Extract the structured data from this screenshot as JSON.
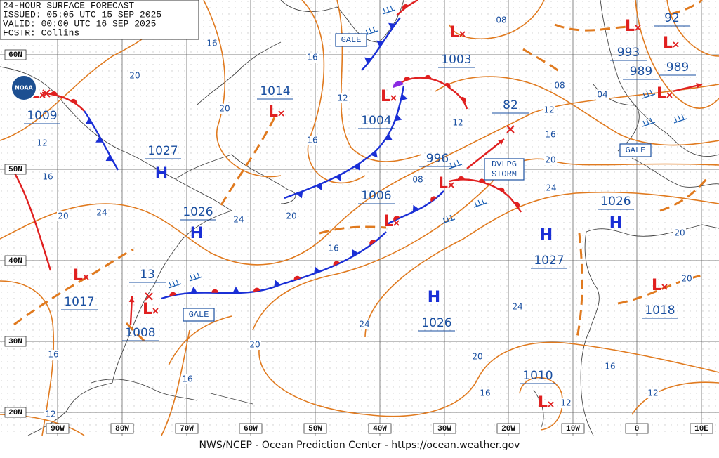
{
  "header": [
    "24-HOUR SURFACE FORECAST",
    "ISSUED: 05:05 UTC 15 SEP 2025",
    "VALID: 00:00 UTC 16 SEP 2025",
    "FCSTR: Collins"
  ],
  "logo": "NOAA",
  "lat_labels": [
    "60N",
    "50N",
    "40N",
    "30N",
    "20N"
  ],
  "lon_labels": [
    "90W",
    "80W",
    "70W",
    "60W",
    "50W",
    "40W",
    "30W",
    "20W",
    "10W",
    "0",
    "10E"
  ],
  "high_symbol": "H",
  "low_symbol": "L",
  "pressure_labels": [
    "1009",
    "1027",
    "1014",
    "1026",
    "1004",
    "1003",
    "993",
    "989",
    "989",
    "82",
    "996",
    "1006",
    "1026",
    "1027",
    "1017",
    "1008",
    "13",
    "1018",
    "1026",
    "1010",
    "92"
  ],
  "isobar_labels": [
    "20",
    "20",
    "16",
    "16",
    "12",
    "16",
    "12",
    "16",
    "20",
    "24",
    "24",
    "20",
    "16",
    "08",
    "08",
    "08",
    "04",
    "12",
    "12",
    "16",
    "20",
    "24",
    "20",
    "20",
    "24",
    "24",
    "20",
    "20",
    "16",
    "16",
    "12",
    "12",
    "16",
    "16",
    "12"
  ],
  "gale_label": "GALE",
  "storm_label": [
    "DVLPG",
    "STORM"
  ],
  "footer": "NWS/NCEP - Ocean Prediction Center - https://ocean.weather.gov"
}
